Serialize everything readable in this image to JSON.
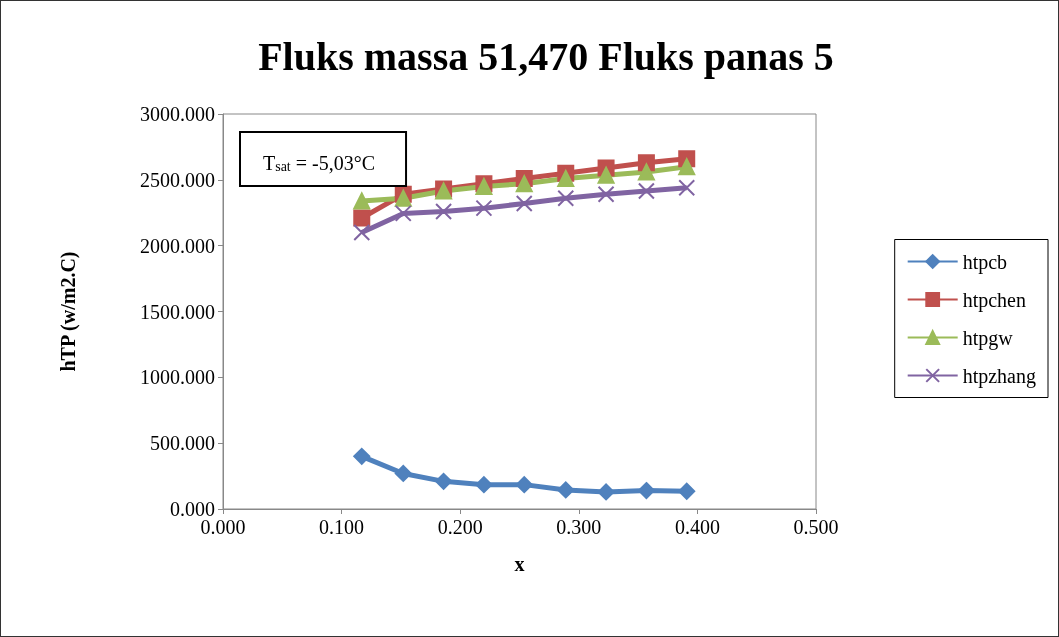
{
  "chart_data": {
    "type": "line",
    "title": "Fluks massa 51,470 Fluks panas 5",
    "xlabel": "x",
    "ylabel": "hTP (w/m2.C)",
    "annotations": [
      "T$_{sat}$ = -5,03°C"
    ],
    "x": [
      0.117,
      0.152,
      0.186,
      0.22,
      0.254,
      0.289,
      0.323,
      0.357,
      0.391
    ],
    "series": [
      {
        "name": "htpcb",
        "color": "#4f81bd",
        "marker": "diamond",
        "values": [
          400,
          270,
          210,
          185,
          185,
          145,
          130,
          140,
          135
        ]
      },
      {
        "name": "htpchen",
        "color": "#c0504d",
        "marker": "square",
        "values": [
          2210,
          2390,
          2430,
          2470,
          2510,
          2550,
          2590,
          2630,
          2660
        ]
      },
      {
        "name": "htpgw",
        "color": "#9bbb59",
        "marker": "triangle",
        "values": [
          2340,
          2360,
          2415,
          2450,
          2470,
          2510,
          2535,
          2560,
          2600
        ]
      },
      {
        "name": "htpzhang",
        "color": "#8064a2",
        "marker": "cross",
        "values": [
          2100,
          2245,
          2260,
          2285,
          2320,
          2360,
          2390,
          2415,
          2440
        ]
      }
    ],
    "xlim": [
      0,
      0.5
    ],
    "xticks": [
      {
        "value": 0,
        "label": "0.000"
      },
      {
        "value": 0.1,
        "label": "0.100"
      },
      {
        "value": 0.2,
        "label": "0.200"
      },
      {
        "value": 0.3,
        "label": "0.300"
      },
      {
        "value": 0.4,
        "label": "0.400"
      },
      {
        "value": 0.5,
        "label": "0.500"
      }
    ],
    "ylim": [
      0,
      3000
    ],
    "yticks": [
      {
        "value": 0,
        "label": "0.000"
      },
      {
        "value": 500,
        "label": "500.000"
      },
      {
        "value": 1000,
        "label": "1000.000"
      },
      {
        "value": 1500,
        "label": "1500.000"
      },
      {
        "value": 2000,
        "label": "2000.000"
      },
      {
        "value": 2500,
        "label": "2500.000"
      },
      {
        "value": 3000,
        "label": "3000.000"
      }
    ],
    "grid": false,
    "legend": "right"
  }
}
